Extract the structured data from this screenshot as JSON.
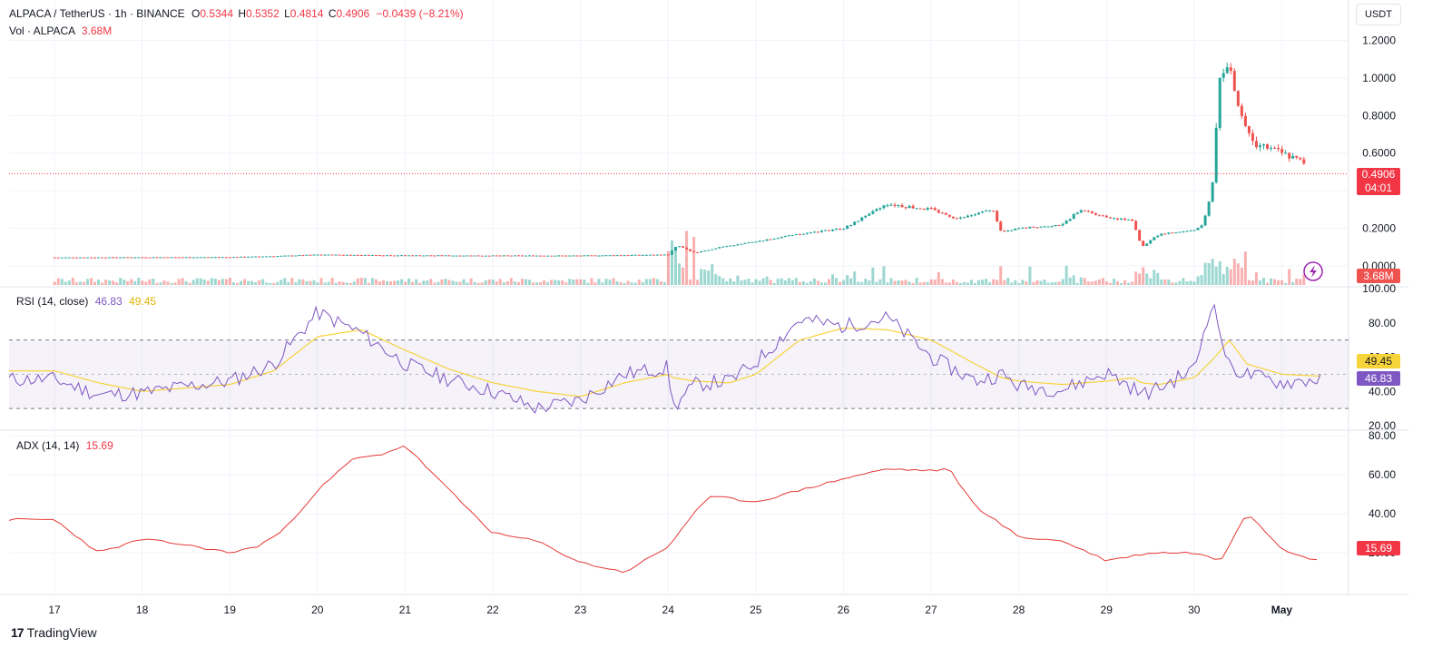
{
  "header": {
    "symbol": "ALPACA / TetherUS · 1h · BINANCE",
    "o_label": "O",
    "o_value": "0.5344",
    "h_label": "H",
    "h_value": "0.5352",
    "l_label": "L",
    "l_value": "0.4814",
    "c_label": "C",
    "c_value": "0.4906",
    "change": "−0.0439 (−8.21%)",
    "vol_label": "Vol · ALPACA",
    "vol_value": "3.68M"
  },
  "currency_button": "USDT",
  "price_badge": {
    "price": "0.4906",
    "countdown": "04:01",
    "volume": "3.68M"
  },
  "rsi": {
    "label": "RSI (14, close)",
    "value": "46.83",
    "ma_value": "49.45"
  },
  "adx": {
    "label": "ADX (14, 14)",
    "value": "15.69"
  },
  "footer": {
    "brand": "TradingView"
  },
  "colors": {
    "up": "#26a69a",
    "down": "#ef5350",
    "rsi": "#7e57c2",
    "rsi_ma": "#f7d33a",
    "adx": "#e53935"
  },
  "chart_data": [
    {
      "type": "candlestick",
      "interval": "1h",
      "x": [
        "17",
        "18",
        "19",
        "20",
        "21",
        "22",
        "23",
        "24",
        "25",
        "26",
        "27",
        "28",
        "29",
        "30",
        "May"
      ],
      "yticks": [
        "0.0000",
        "0.2000",
        "0.4000",
        "0.6000",
        "0.8000",
        "1.0000",
        "1.2000"
      ],
      "ylim": [
        0,
        1.27
      ],
      "last_price": 0.4906,
      "price_path": [
        [
          0,
          0.045
        ],
        [
          1,
          0.046
        ],
        [
          2,
          0.047
        ],
        [
          2.5,
          0.052
        ],
        [
          3,
          0.06
        ],
        [
          3.5,
          0.058
        ],
        [
          4,
          0.056
        ],
        [
          5,
          0.055
        ],
        [
          6,
          0.055
        ],
        [
          7,
          0.06
        ],
        [
          7.1,
          0.11
        ],
        [
          7.3,
          0.07
        ],
        [
          7.6,
          0.1
        ],
        [
          8,
          0.13
        ],
        [
          8.5,
          0.17
        ],
        [
          9,
          0.2
        ],
        [
          9.5,
          0.33
        ],
        [
          10,
          0.3
        ],
        [
          10.3,
          0.25
        ],
        [
          10.7,
          0.3
        ],
        [
          10.8,
          0.18
        ],
        [
          11,
          0.2
        ],
        [
          11.5,
          0.22
        ],
        [
          11.7,
          0.3
        ],
        [
          12,
          0.26
        ],
        [
          12.3,
          0.24
        ],
        [
          12.4,
          0.1
        ],
        [
          12.6,
          0.17
        ],
        [
          13,
          0.19
        ],
        [
          13.1,
          0.22
        ],
        [
          13.2,
          0.4
        ],
        [
          13.3,
          1.05
        ],
        [
          13.4,
          1.05
        ],
        [
          13.5,
          0.85
        ],
        [
          13.7,
          0.65
        ],
        [
          14,
          0.6
        ],
        [
          14.5,
          0.5
        ]
      ],
      "volume_label": "Vol · ALPACA"
    },
    {
      "type": "line",
      "name": "RSI (14, close)",
      "yticks": [
        "20.00",
        "40.00",
        "60.00",
        "80.00",
        "100.00"
      ],
      "ylim": [
        20,
        100
      ],
      "bands": [
        30,
        70
      ],
      "x": [
        0,
        0.5,
        1,
        1.5,
        2,
        2.5,
        3,
        3.5,
        4,
        4.5,
        5,
        5.5,
        6,
        6.5,
        7,
        7.05,
        7.3,
        7.7,
        8,
        8.5,
        9,
        9.5,
        10,
        10.5,
        10.8,
        11,
        11.5,
        12,
        12.3,
        12.4,
        12.6,
        13,
        13.2,
        13.4,
        13.6,
        14,
        14.4
      ],
      "values": [
        47,
        38,
        39,
        43,
        46,
        56,
        86,
        74,
        56,
        47,
        40,
        30,
        35,
        50,
        54,
        30,
        44,
        46,
        57,
        82,
        78,
        83,
        60,
        46,
        50,
        43,
        41,
        51,
        42,
        38,
        42,
        53,
        93,
        54,
        50,
        45,
        47
      ],
      "ma_values": [
        52,
        45,
        40,
        42,
        44,
        52,
        72,
        76,
        64,
        53,
        45,
        40,
        37,
        45,
        50,
        48,
        46,
        45,
        50,
        70,
        77,
        76,
        70,
        56,
        48,
        46,
        44,
        46,
        48,
        45,
        44,
        48,
        58,
        70,
        56,
        50,
        49
      ]
    },
    {
      "type": "line",
      "name": "ADX (14, 14)",
      "yticks": [
        "20.00",
        "40.00",
        "60.00",
        "80.00"
      ],
      "ylim": [
        7,
        80
      ],
      "x": [
        0,
        0.5,
        1,
        1.5,
        2,
        2.3,
        2.6,
        3,
        3.4,
        3.7,
        4,
        4.5,
        5,
        5.5,
        6,
        6.5,
        7,
        7.3,
        7.5,
        8,
        8.5,
        9,
        9.5,
        10,
        10.2,
        10.5,
        11,
        11.5,
        12,
        12.5,
        13,
        13.3,
        13.6,
        14,
        14.4
      ],
      "values": [
        37,
        20,
        27,
        24,
        20,
        23,
        31,
        52,
        68,
        70,
        75,
        52,
        30,
        26,
        15,
        10,
        23,
        41,
        49,
        46,
        52,
        58,
        63,
        62,
        63,
        44,
        28,
        26,
        16,
        20,
        20,
        16,
        41,
        22,
        16
      ]
    }
  ]
}
